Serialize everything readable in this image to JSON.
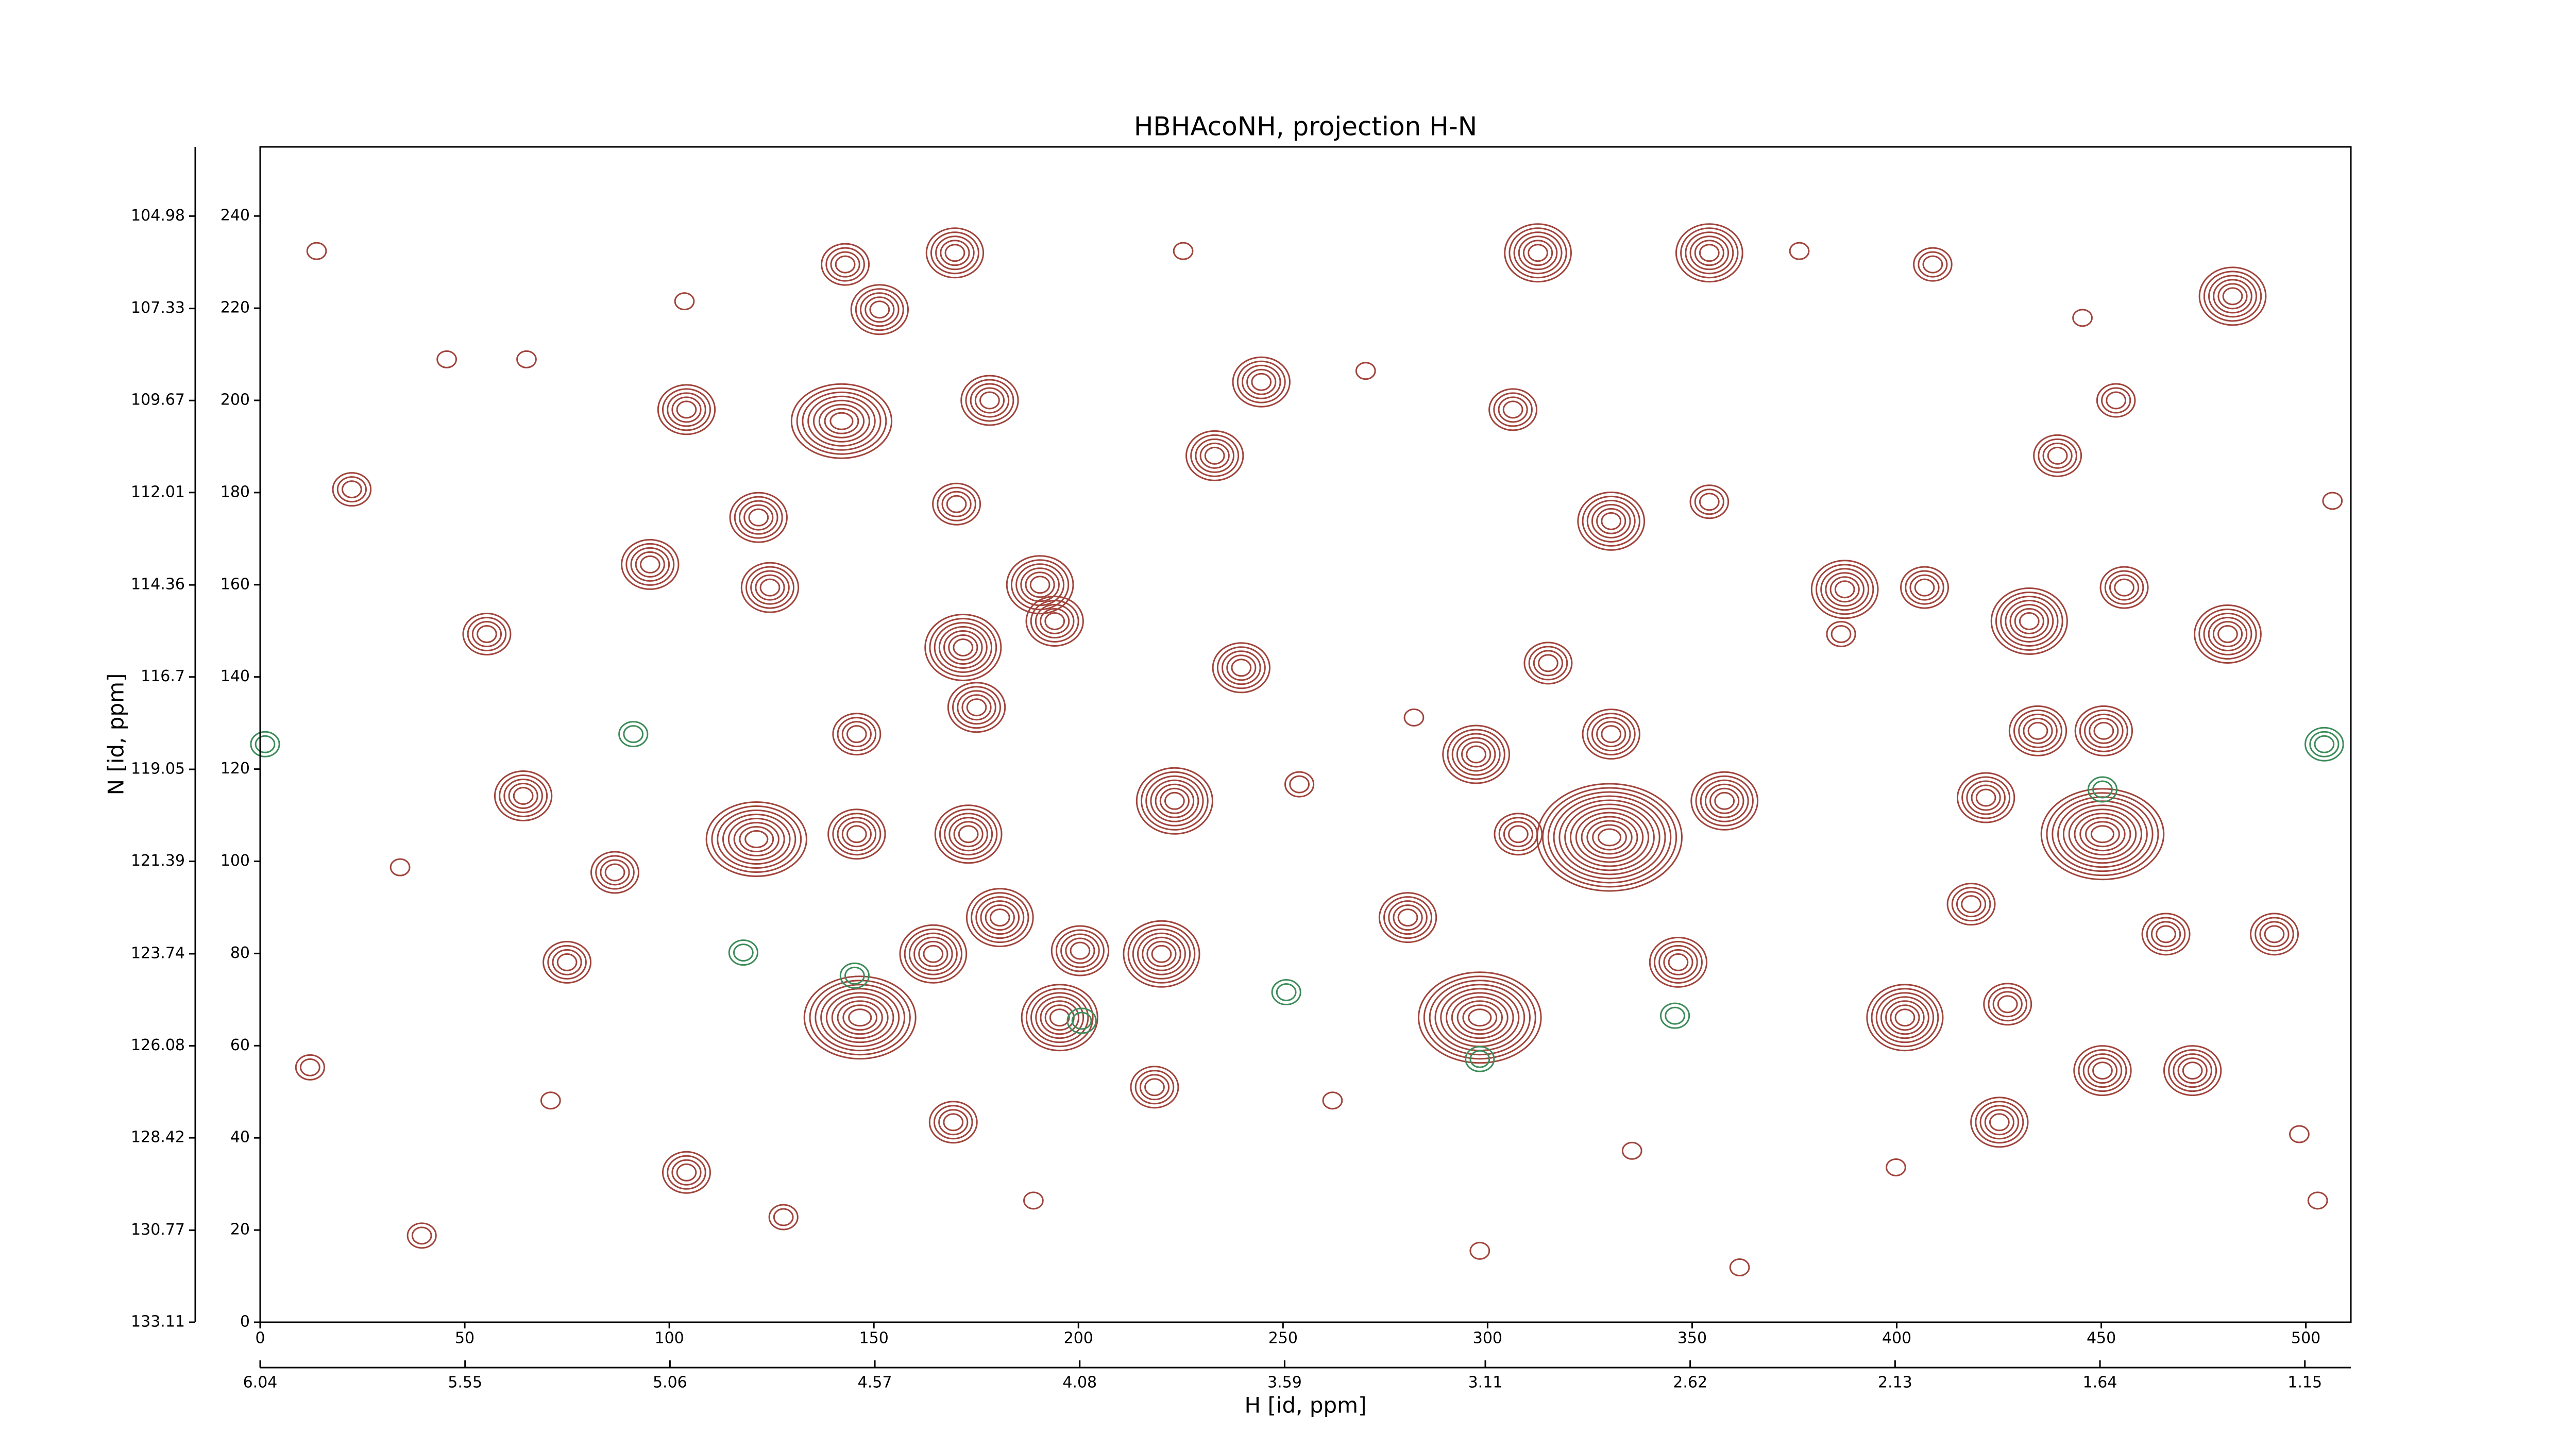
{
  "chart_data": {
    "type": "contour",
    "title": "HBHAcoNH, projection H-N",
    "xlabel": "H [id, ppm]",
    "ylabel": "N [id, ppm]",
    "xlim": [
      0,
      511
    ],
    "xticks": [
      0,
      50,
      100,
      150,
      200,
      250,
      300,
      350,
      400,
      450,
      500
    ],
    "ylim": [
      0,
      255
    ],
    "yticks": [
      0,
      20,
      40,
      60,
      80,
      100,
      120,
      140,
      160,
      180,
      200,
      220,
      240
    ],
    "x2lim": [
      6.04,
      1.04
    ],
    "x2ticks": [
      6.04,
      5.55,
      5.06,
      4.57,
      4.08,
      3.59,
      3.11,
      2.62,
      2.13,
      1.64,
      1.15
    ],
    "y2lim": [
      133.11,
      103.22
    ],
    "y2ticks": [
      133.11,
      130.77,
      128.42,
      126.08,
      123.74,
      121.39,
      119.05,
      116.7,
      114.36,
      112.01,
      109.67,
      107.33,
      104.98
    ],
    "series": [
      {
        "color": "#a0443c",
        "x": [
          169.8,
          312.3,
          354.2,
          408.8,
          482.1,
          143,
          151.4,
          142.1,
          104.2,
          178.3,
          244.7,
          306.2,
          233.3,
          22.4,
          121.8,
          170.2,
          330.2,
          439.3,
          453.6,
          354.2,
          95.3,
          124.6,
          190.6,
          387.3,
          406.8,
          455.6,
          480.9,
          55.4,
          171.8,
          194.2,
          432.4,
          239.8,
          314.8,
          175.1,
          330.2,
          434.5,
          450.6,
          145.8,
          297.2,
          64.3,
          223.5,
          357.9,
          421.8,
          121.3,
          145.8,
          173.1,
          329.8,
          450.3,
          307.5,
          86.7,
          418.2,
          180.8,
          280.5,
          220.3,
          164.5,
          75,
          200.4,
          346.6,
          465.8,
          492.3,
          146.6,
          298.1,
          195.4,
          402,
          427.1,
          450.3,
          472.3,
          169.4,
          425.1,
          104.2,
          39.5,
          218.6,
          13.8,
          45.6,
          65.1,
          103.7,
          225.6,
          270.2,
          376.2,
          445.4,
          386.4,
          282,
          262.1,
          335.3,
          399.8,
          498.4,
          127.9,
          189,
          298.1,
          361.6,
          71,
          12.2,
          506.5,
          502.9,
          34.2,
          254
        ],
        "y": [
          232,
          232,
          232,
          229.5,
          222.6,
          229.5,
          219.7,
          195.5,
          198,
          200,
          204,
          198,
          188,
          180.7,
          174.6,
          177.5,
          173.8,
          188,
          200,
          178,
          164.4,
          159.4,
          160,
          159,
          159.4,
          159.4,
          149.3,
          149.3,
          146.4,
          152.1,
          152.1,
          142,
          143,
          133.4,
          127.6,
          128.3,
          128.3,
          127.6,
          123.2,
          114.2,
          113.1,
          113.1,
          113.8,
          104.8,
          105.9,
          105.9,
          105.2,
          105.9,
          105.9,
          97.6,
          90.7,
          87.8,
          87.8,
          79.9,
          79.9,
          78.1,
          80.6,
          78.1,
          84.2,
          84.2,
          66.1,
          66.1,
          66.1,
          66.1,
          69,
          54.6,
          54.6,
          43.4,
          43.4,
          32.5,
          18.8,
          51,
          232.4,
          208.9,
          208.9,
          221.5,
          232.4,
          206.4,
          232.4,
          217.9,
          149.3,
          131.2,
          48.1,
          37.2,
          33.6,
          40.8,
          22.8,
          26.4,
          15.5,
          11.9,
          48.1,
          55.3,
          178.2,
          26.4,
          98.7,
          116.7
        ],
        "levels": [
          5,
          6,
          6,
          3,
          6,
          4,
          5,
          8,
          5,
          5,
          5,
          4,
          5,
          3,
          5,
          4,
          6,
          4,
          3,
          3,
          5,
          5,
          6,
          6,
          4,
          4,
          6,
          4,
          7,
          5,
          7,
          5,
          4,
          5,
          5,
          5,
          5,
          4,
          6,
          5,
          7,
          6,
          5,
          8,
          5,
          6,
          12,
          10,
          4,
          4,
          4,
          6,
          5,
          7,
          6,
          4,
          5,
          5,
          4,
          4,
          9,
          10,
          7,
          7,
          4,
          5,
          5,
          4,
          5,
          4,
          2,
          4,
          1,
          1,
          1,
          1,
          1,
          1,
          1,
          1,
          2,
          1,
          1,
          1,
          1,
          1,
          2,
          1,
          1,
          1,
          1,
          2,
          1,
          1,
          1,
          2
        ]
      },
      {
        "color": "#3c8c5a",
        "x": [
          145.3,
          298.1,
          450.3,
          345.8,
          200.8,
          250.8,
          504.5,
          1.2,
          91.2,
          118.1
        ],
        "y": [
          75.2,
          57.1,
          115.6,
          66.5,
          65.4,
          71.6,
          125.4,
          125.4,
          127.6,
          80.2
        ],
        "levels": [
          2,
          2,
          2,
          2,
          2,
          2,
          3,
          2,
          2,
          2
        ]
      }
    ]
  }
}
